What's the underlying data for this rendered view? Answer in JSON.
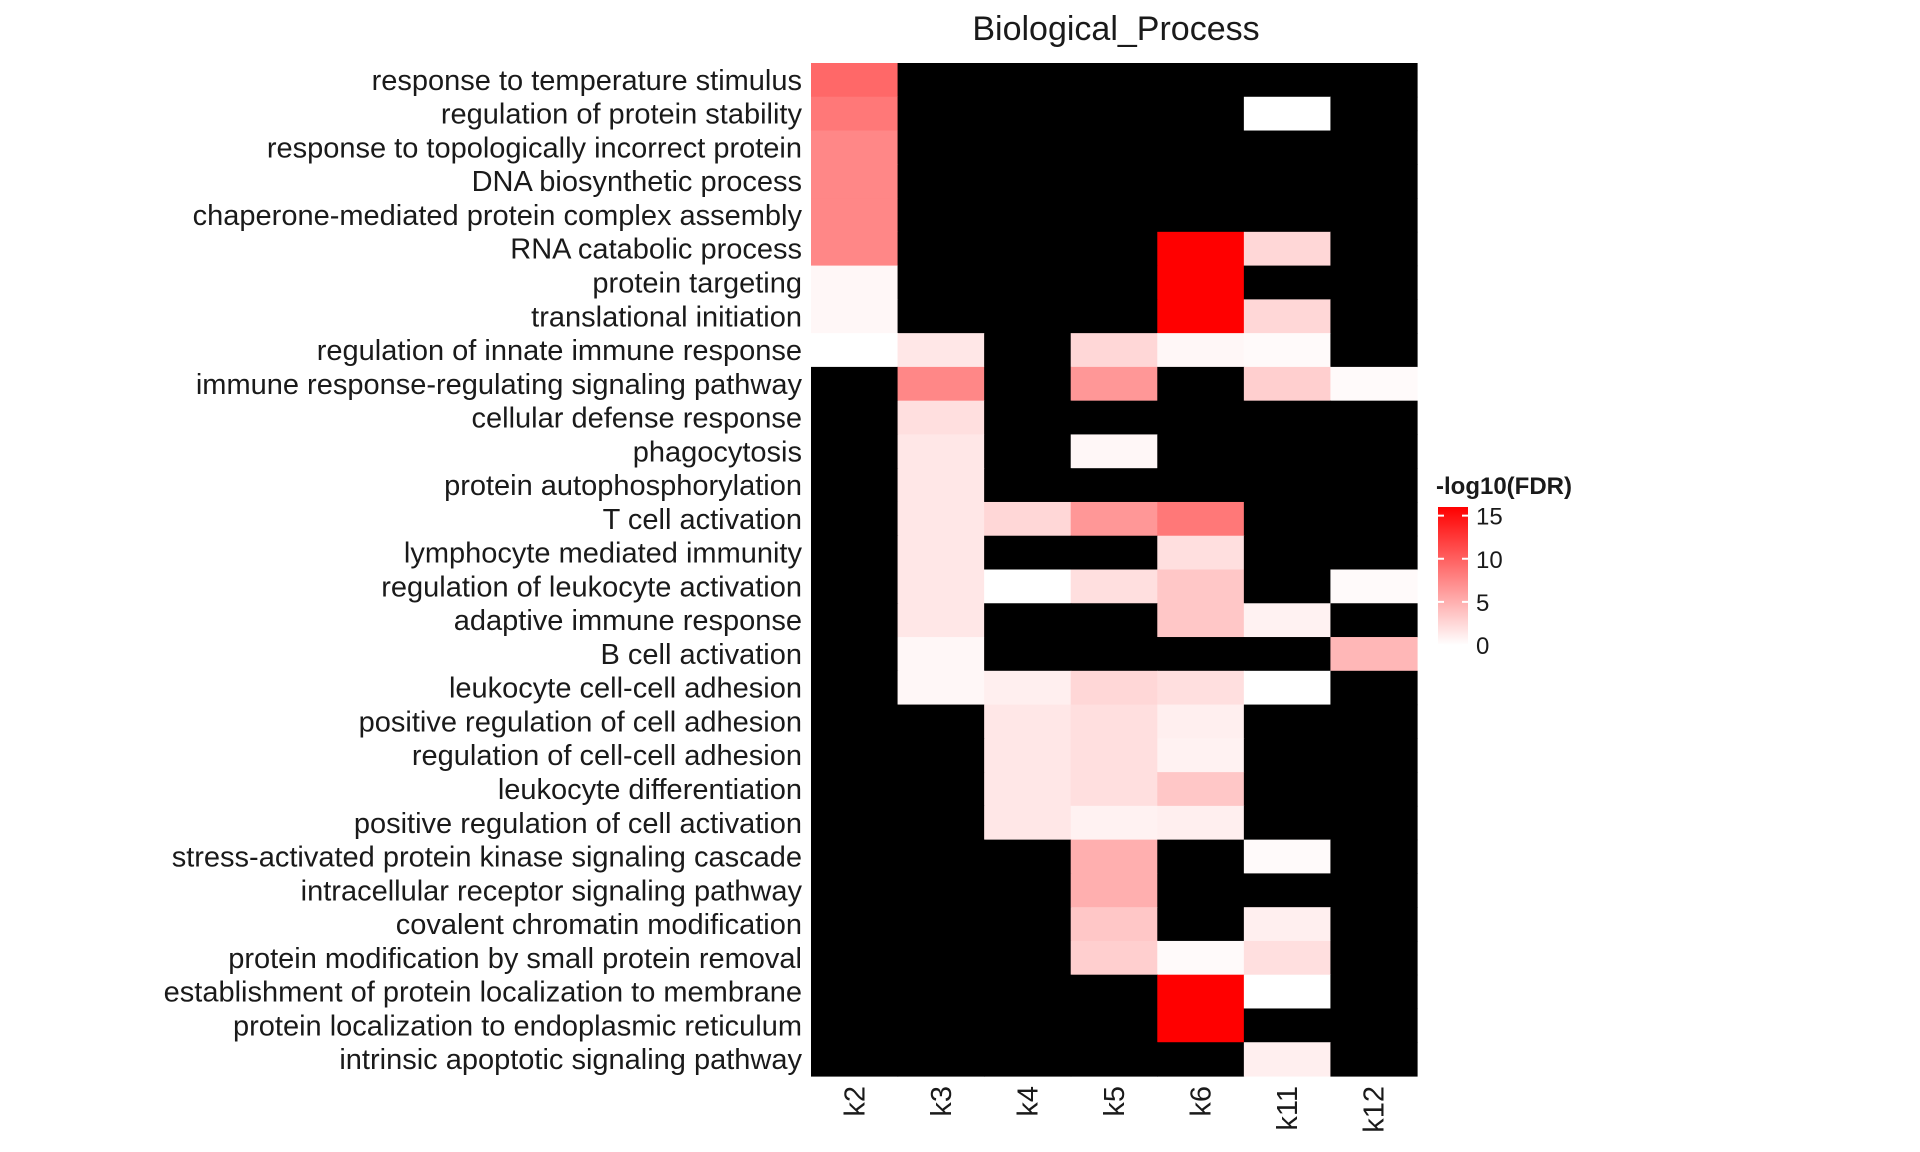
{
  "chart_data": {
    "type": "heatmap",
    "title": "Biological_Process",
    "columns": [
      "k2",
      "k3",
      "k4",
      "k5",
      "k6",
      "k11",
      "k12"
    ],
    "rows": [
      "response to temperature stimulus",
      "regulation of protein stability",
      "response to topologically incorrect protein",
      "DNA biosynthetic process",
      "chaperone-mediated protein complex assembly",
      "RNA catabolic process",
      "protein targeting",
      "translational initiation",
      "regulation of innate immune response",
      "immune response-regulating signaling pathway",
      "cellular defense response",
      "phagocytosis",
      "protein autophosphorylation",
      "T cell activation",
      "lymphocyte mediated immunity",
      "regulation of leukocyte activation",
      "adaptive immune response",
      "B cell activation",
      "leukocyte cell-cell adhesion",
      "positive regulation of cell adhesion",
      "regulation of cell-cell adhesion",
      "leukocyte differentiation",
      "positive regulation of cell activation",
      "stress-activated protein kinase signaling cascade",
      "intracellular receptor signaling pathway",
      "covalent chromatin modification",
      "protein modification by small protein removal",
      "establishment of protein localization to membrane",
      "protein localization to endoplasmic reticulum",
      "intrinsic apoptotic signaling pathway"
    ],
    "values": [
      [
        9.5,
        null,
        null,
        null,
        null,
        null,
        null
      ],
      [
        8.5,
        null,
        null,
        null,
        null,
        0,
        null
      ],
      [
        7.5,
        null,
        null,
        null,
        null,
        null,
        null
      ],
      [
        7.5,
        null,
        null,
        null,
        null,
        null,
        null
      ],
      [
        7.5,
        null,
        null,
        null,
        null,
        null,
        null
      ],
      [
        7.5,
        null,
        null,
        null,
        16,
        2.5,
        null
      ],
      [
        0.5,
        null,
        null,
        null,
        16,
        null,
        null
      ],
      [
        0.5,
        null,
        null,
        null,
        16,
        2.5,
        null
      ],
      [
        0,
        1.5,
        null,
        2.5,
        0.5,
        0.3,
        null
      ],
      [
        null,
        7.5,
        null,
        6.5,
        null,
        3,
        0.3
      ],
      [
        null,
        2,
        null,
        null,
        null,
        null,
        null
      ],
      [
        null,
        1.5,
        null,
        0.5,
        null,
        null,
        null
      ],
      [
        null,
        1.5,
        null,
        null,
        null,
        null,
        null
      ],
      [
        null,
        1.5,
        2.5,
        6.5,
        8.5,
        null,
        null
      ],
      [
        null,
        1.5,
        null,
        null,
        2,
        null,
        null
      ],
      [
        null,
        1.5,
        0,
        2,
        3.5,
        null,
        0.3
      ],
      [
        null,
        1.5,
        null,
        null,
        3.5,
        0.8,
        null
      ],
      [
        null,
        0.5,
        null,
        null,
        null,
        null,
        4.5
      ],
      [
        null,
        0.5,
        1,
        2.5,
        2,
        0,
        null
      ],
      [
        null,
        null,
        1.5,
        2,
        1,
        null,
        null
      ],
      [
        null,
        null,
        1.5,
        2,
        0.8,
        null,
        null
      ],
      [
        null,
        null,
        1.5,
        2,
        3.5,
        null,
        null
      ],
      [
        null,
        null,
        1.5,
        0.8,
        1,
        null,
        null
      ],
      [
        null,
        null,
        null,
        5,
        null,
        0.3,
        null
      ],
      [
        null,
        null,
        null,
        5,
        null,
        null,
        null
      ],
      [
        null,
        null,
        null,
        3.5,
        null,
        1,
        null
      ],
      [
        null,
        null,
        null,
        3,
        0.3,
        2,
        null
      ],
      [
        null,
        null,
        null,
        null,
        16,
        0,
        null
      ],
      [
        null,
        null,
        null,
        null,
        16,
        null,
        null
      ],
      [
        null,
        null,
        null,
        null,
        null,
        1,
        null
      ]
    ],
    "missing_color": "#000000",
    "color_low": "#ffffff",
    "color_high": "#ff0000",
    "legend": {
      "title": "-log10(FDR)",
      "ticks": [
        0,
        5,
        10,
        15
      ],
      "range": [
        0,
        16
      ],
      "position": "right"
    }
  }
}
